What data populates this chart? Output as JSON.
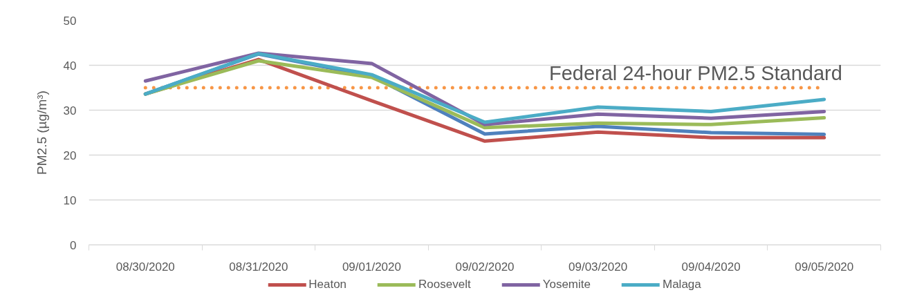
{
  "chart_data": {
    "type": "line",
    "ylabel": "PM2.5 (µg/m³)",
    "categories": [
      "08/30/2020",
      "08/31/2020",
      "09/01/2020",
      "09/02/2020",
      "09/03/2020",
      "09/04/2020",
      "09/05/2020"
    ],
    "series": [
      {
        "color": "#4f81bd",
        "values": [
          33.6,
          42.5,
          37.6,
          24.7,
          26.4,
          25.0,
          24.6
        ]
      },
      {
        "name": "Heaton",
        "color": "#c0504d",
        "values": [
          33.6,
          41.3,
          32.1,
          23.1,
          25.1,
          23.9,
          23.9
        ]
      },
      {
        "name": "Roosevelt",
        "color": "#9bbb59",
        "values": [
          33.6,
          41.0,
          37.3,
          26.1,
          27.1,
          26.8,
          28.3
        ]
      },
      {
        "name": "Yosemite",
        "color": "#8064a2",
        "values": [
          36.5,
          42.7,
          40.4,
          26.8,
          29.1,
          28.2,
          29.7
        ]
      },
      {
        "name": "Malaga",
        "color": "#4bacc6",
        "values": [
          33.6,
          42.6,
          37.9,
          27.3,
          30.7,
          29.7,
          32.4
        ]
      }
    ],
    "ylim": [
      0,
      50
    ],
    "yticks": [
      0,
      10,
      20,
      30,
      40,
      50
    ],
    "ref_lines": [
      {
        "axis": "y",
        "value": 35,
        "label": "Federal 24-hour PM2.5 Standard",
        "color": "#f79646",
        "line_style": "dotted"
      }
    ],
    "grid": "y",
    "legend": "bottom",
    "line_style": "solid"
  }
}
